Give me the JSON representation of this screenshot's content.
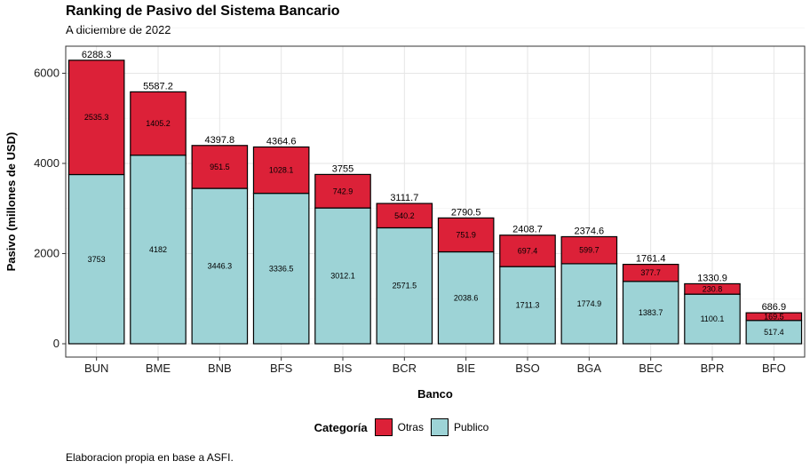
{
  "chart_data": {
    "type": "bar",
    "stacked": true,
    "title": "Ranking de Pasivo del Sistema Bancario",
    "subtitle": "A diciembre de 2022",
    "caption": "Elaboracion propia en base a ASFI.",
    "xlabel": "Banco",
    "ylabel": "Pasivo (millones de USD)",
    "ylim": [
      0,
      6600
    ],
    "yticks": [
      0,
      2000,
      4000,
      6000
    ],
    "grid": true,
    "legend_position": "bottom",
    "legend_title": "Categoría",
    "categories": [
      "BUN",
      "BME",
      "BNB",
      "BFS",
      "BIS",
      "BCR",
      "BIE",
      "BSO",
      "BGA",
      "BEC",
      "BPR",
      "BFO"
    ],
    "totals": [
      "6288.3",
      "5587.2",
      "4397.8",
      "4364.6",
      "3755",
      "3111.7",
      "2790.5",
      "2408.7",
      "2374.6",
      "1761.4",
      "1330.9",
      "686.9"
    ],
    "series": [
      {
        "name": "Publico",
        "color": "#9dd3d6",
        "values": [
          3753,
          4182,
          3446.3,
          3336.5,
          3012.1,
          2571.5,
          2038.6,
          1711.3,
          1774.9,
          1383.7,
          1100.1,
          517.4
        ],
        "labels": [
          "3753",
          "4182",
          "3446.3",
          "3336.5",
          "3012.1",
          "2571.5",
          "2038.6",
          "1711.3",
          "1774.9",
          "1383.7",
          "1100.1",
          "517.4"
        ]
      },
      {
        "name": "Otras",
        "color": "#dc2138",
        "values": [
          2535.3,
          1405.2,
          951.5,
          1028.1,
          742.9,
          540.2,
          751.9,
          697.4,
          599.7,
          377.7,
          230.8,
          169.5
        ],
        "labels": [
          "2535.3",
          "1405.2",
          "951.5",
          "1028.1",
          "742.9",
          "540.2",
          "751.9",
          "697.4",
          "599.7",
          "377.7",
          "230.8",
          "169.5"
        ]
      }
    ],
    "legend_order": [
      "Otras",
      "Publico"
    ]
  }
}
